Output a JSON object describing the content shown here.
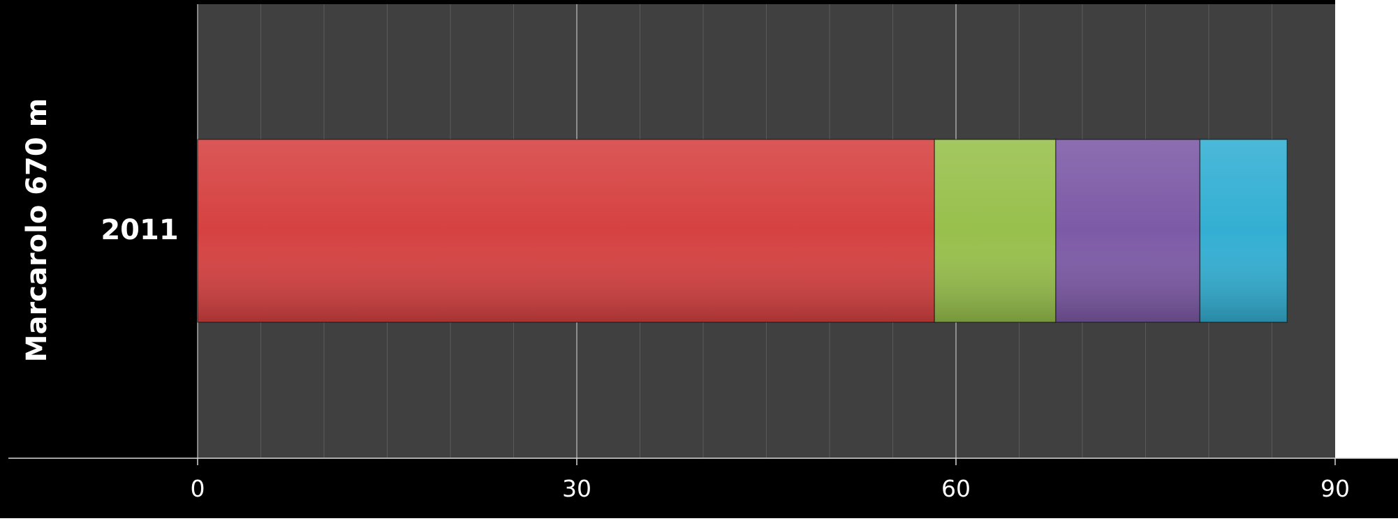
{
  "chart_data": {
    "type": "bar",
    "orientation": "horizontal",
    "stacked": true,
    "group_label": "Marcarolo 670 m",
    "categories": [
      "2011"
    ],
    "series": [
      {
        "color": "#d64141",
        "values": [
          58.3
        ]
      },
      {
        "color": "#98c04c",
        "values": [
          9.6
        ]
      },
      {
        "color": "#7d5aa6",
        "values": [
          11.4
        ]
      },
      {
        "color": "#33afd3",
        "values": [
          6.9
        ]
      }
    ],
    "xlim": [
      0,
      90
    ],
    "x_ticks": [
      "0",
      "30",
      "60",
      "90"
    ],
    "x_tick_values": [
      0,
      30,
      60,
      90
    ],
    "grid": true,
    "colors": {
      "plot_background": "#404040",
      "label_background": "#000000",
      "axis_text": "#ffffff"
    }
  }
}
